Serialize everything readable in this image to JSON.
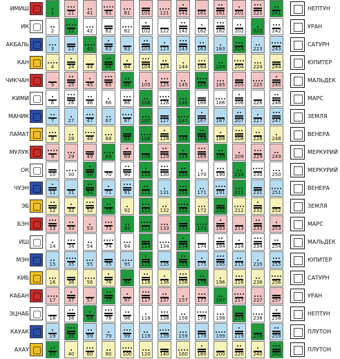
{
  "days": [
    {
      "name": "ИМИШ",
      "glyph": "imix-glyph",
      "color": "#cc2a2a"
    },
    {
      "name": "ИК",
      "glyph": "ik-glyph",
      "color": "#ffffff"
    },
    {
      "name": "АКБАЛЬ",
      "glyph": "akbal-glyph",
      "color": "#2b4fa8"
    },
    {
      "name": "КАН",
      "glyph": "kan-glyph",
      "color": "#f0c020"
    },
    {
      "name": "ЧИКЧАН",
      "glyph": "chikchan-glyph",
      "color": "#cc2a2a"
    },
    {
      "name": "КИМИ",
      "glyph": "kimi-glyph",
      "color": "#ffffff"
    },
    {
      "name": "МАНИК",
      "glyph": "manik-glyph",
      "color": "#2b4fa8"
    },
    {
      "name": "ЛАМАТ",
      "glyph": "lamat-glyph",
      "color": "#f0c020"
    },
    {
      "name": "МУЛУК",
      "glyph": "muluk-glyph",
      "color": "#cc2a2a"
    },
    {
      "name": "ОК",
      "glyph": "ok-glyph",
      "color": "#ffffff"
    },
    {
      "name": "ЧУЭН",
      "glyph": "chuen-glyph",
      "color": "#2b4fa8"
    },
    {
      "name": "ЭБ",
      "glyph": "eb-glyph",
      "color": "#f0c020"
    },
    {
      "name": "БЭН",
      "glyph": "ben-glyph",
      "color": "#cc2a2a"
    },
    {
      "name": "ИШ",
      "glyph": "ix-glyph",
      "color": "#ffffff"
    },
    {
      "name": "МЭН",
      "glyph": "men-glyph",
      "color": "#2b4fa8"
    },
    {
      "name": "КИБ",
      "glyph": "kib-glyph",
      "color": "#f0c020"
    },
    {
      "name": "КАБАН",
      "glyph": "kaban-glyph",
      "color": "#cc2a2a"
    },
    {
      "name": "ЭЦНАБ",
      "glyph": "etznab-glyph",
      "color": "#ffffff"
    },
    {
      "name": "КАУАК",
      "glyph": "kauak-glyph",
      "color": "#2b4fa8"
    },
    {
      "name": "АХАУ",
      "glyph": "ahau-glyph",
      "color": "#f0c020"
    }
  ],
  "planets": [
    {
      "name": "НЕПТУН",
      "glyph": "neptune-glyph"
    },
    {
      "name": "УРАН",
      "glyph": "uranus-glyph"
    },
    {
      "name": "САТУРН",
      "glyph": "saturn-glyph"
    },
    {
      "name": "ЮПИТЕР",
      "glyph": "jupiter-glyph"
    },
    {
      "name": "МАЛЬДЕК",
      "glyph": "maldek-glyph"
    },
    {
      "name": "МАРС",
      "glyph": "mars-glyph"
    },
    {
      "name": "ЗЕМЛЯ",
      "glyph": "earth-glyph"
    },
    {
      "name": "ВЕНЕРА",
      "glyph": "venus-glyph"
    },
    {
      "name": "МЕРКУРИЙ",
      "glyph": "mercury-glyph"
    },
    {
      "name": "МЕРКУРИЙ",
      "glyph": "mercury-glyph"
    },
    {
      "name": "ВЕНЕРА",
      "glyph": "venus-glyph"
    },
    {
      "name": "ЗЕМЛЯ",
      "glyph": "earth-glyph"
    },
    {
      "name": "МАРС",
      "glyph": "mars-glyph"
    },
    {
      "name": "МАЛЬДЕК",
      "glyph": "maldek-glyph"
    },
    {
      "name": "ЮПИТЕР",
      "glyph": "jupiter-glyph"
    },
    {
      "name": "САТУРН",
      "glyph": "saturn-glyph"
    },
    {
      "name": "УРАН",
      "glyph": "uranus-glyph"
    },
    {
      "name": "НЕПТУН",
      "glyph": "neptune-glyph"
    },
    {
      "name": "ПЛУТОН",
      "glyph": "pluto-glyph"
    },
    {
      "name": "ПЛУТОН",
      "glyph": "pluto-glyph"
    }
  ],
  "row_colors": [
    "#f2c4c4",
    "#ffffff",
    "#b6dcf2",
    "#f6f2b8"
  ],
  "portal_color": "#1f9a3c",
  "portal_kins": [
    1,
    20,
    22,
    39,
    43,
    50,
    51,
    58,
    64,
    69,
    72,
    77,
    85,
    88,
    93,
    96,
    106,
    107,
    108,
    109,
    110,
    111,
    112,
    113,
    114,
    115,
    146,
    147,
    148,
    149,
    150,
    151,
    152,
    153,
    154,
    155,
    165,
    168,
    173,
    176,
    184,
    189,
    192,
    197,
    203,
    210,
    211,
    218,
    222,
    239,
    241,
    260
  ],
  "kin_numbers": [
    [
      1,
      21,
      41,
      61,
      81,
      101,
      121,
      141,
      161,
      181,
      201,
      221,
      241
    ],
    [
      2,
      22,
      42,
      62,
      82,
      102,
      122,
      142,
      162,
      182,
      202,
      222,
      242
    ],
    [
      3,
      23,
      43,
      63,
      83,
      103,
      123,
      143,
      163,
      183,
      203,
      223,
      243
    ],
    [
      4,
      24,
      44,
      64,
      84,
      104,
      124,
      144,
      164,
      184,
      204,
      224,
      244
    ],
    [
      5,
      25,
      45,
      65,
      85,
      105,
      125,
      145,
      165,
      185,
      205,
      225,
      245
    ],
    [
      6,
      26,
      46,
      66,
      86,
      106,
      126,
      146,
      166,
      186,
      206,
      226,
      246
    ],
    [
      7,
      27,
      47,
      67,
      87,
      107,
      127,
      147,
      167,
      187,
      207,
      227,
      247
    ],
    [
      8,
      28,
      48,
      68,
      88,
      108,
      128,
      148,
      168,
      188,
      208,
      228,
      248
    ],
    [
      9,
      29,
      49,
      69,
      89,
      109,
      129,
      149,
      169,
      189,
      209,
      229,
      249
    ],
    [
      10,
      30,
      50,
      70,
      90,
      110,
      130,
      150,
      170,
      190,
      210,
      230,
      250
    ],
    [
      11,
      31,
      51,
      71,
      91,
      111,
      131,
      151,
      171,
      191,
      211,
      231,
      251
    ],
    [
      12,
      32,
      52,
      72,
      92,
      112,
      132,
      152,
      172,
      192,
      212,
      232,
      252
    ],
    [
      13,
      33,
      53,
      73,
      93,
      113,
      133,
      153,
      173,
      193,
      213,
      233,
      253
    ],
    [
      14,
      34,
      54,
      74,
      94,
      114,
      134,
      154,
      174,
      194,
      214,
      234,
      254
    ],
    [
      15,
      35,
      55,
      75,
      95,
      115,
      135,
      155,
      175,
      195,
      215,
      235,
      255
    ],
    [
      16,
      36,
      56,
      76,
      96,
      116,
      136,
      156,
      176,
      196,
      216,
      236,
      256
    ],
    [
      17,
      37,
      57,
      77,
      97,
      117,
      137,
      157,
      177,
      197,
      217,
      237,
      257
    ],
    [
      18,
      38,
      58,
      78,
      98,
      118,
      138,
      158,
      178,
      198,
      218,
      238,
      258
    ],
    [
      19,
      39,
      59,
      79,
      99,
      119,
      139,
      159,
      179,
      199,
      219,
      239,
      259
    ],
    [
      20,
      40,
      60,
      80,
      100,
      120,
      140,
      160,
      180,
      200,
      220,
      240,
      260
    ]
  ]
}
